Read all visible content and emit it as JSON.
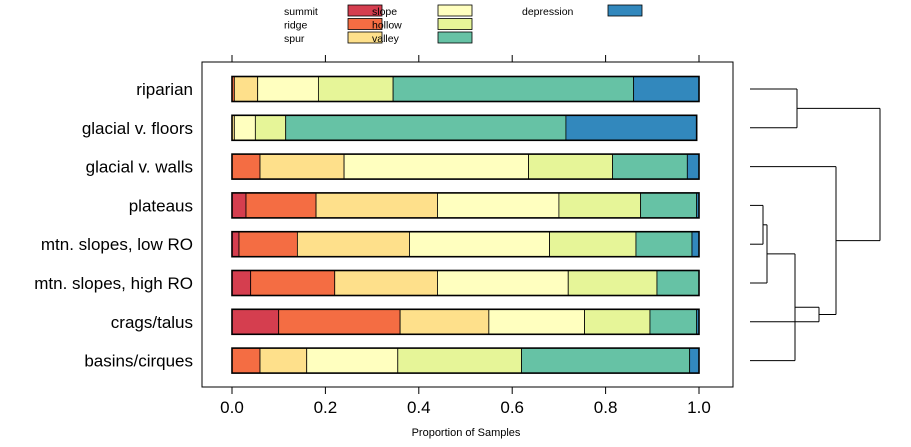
{
  "chart_data": {
    "type": "bar",
    "stacked": true,
    "orientation": "horizontal",
    "title": "",
    "xlabel": "Proportion of Samples",
    "ylabel": "",
    "xlim": [
      0,
      1
    ],
    "xticks": [
      "0.0",
      "0.2",
      "0.4",
      "0.6",
      "0.8",
      "1.0"
    ],
    "grid": false,
    "legend_position": "top",
    "categories": [
      "riparian",
      "glacial v. floors",
      "glacial v. walls",
      "plateaus",
      "mtn. slopes, low RO",
      "mtn. slopes, high RO",
      "crags/talus",
      "basins/cirques"
    ],
    "series": [
      {
        "name": "summit",
        "color": "#d53e4f",
        "values": [
          0.0,
          0.0,
          0.0,
          0.03,
          0.015,
          0.04,
          0.1,
          0.0
        ]
      },
      {
        "name": "ridge",
        "color": "#f46d43",
        "values": [
          0.005,
          0.0,
          0.06,
          0.15,
          0.125,
          0.18,
          0.26,
          0.06
        ]
      },
      {
        "name": "spur",
        "color": "#fee08b",
        "values": [
          0.05,
          0.005,
          0.18,
          0.26,
          0.24,
          0.22,
          0.19,
          0.1
        ]
      },
      {
        "name": "slope",
        "color": "#ffffbf",
        "values": [
          0.13,
          0.045,
          0.395,
          0.26,
          0.3,
          0.28,
          0.205,
          0.195
        ]
      },
      {
        "name": "hollow",
        "color": "#e6f598",
        "values": [
          0.16,
          0.065,
          0.18,
          0.175,
          0.185,
          0.19,
          0.14,
          0.265
        ]
      },
      {
        "name": "valley",
        "color": "#66c2a5",
        "values": [
          0.515,
          0.6,
          0.16,
          0.12,
          0.12,
          0.09,
          0.1,
          0.36
        ]
      },
      {
        "name": "depression",
        "color": "#3288bd",
        "values": [
          0.14,
          0.28,
          0.025,
          0.005,
          0.015,
          0.0,
          0.005,
          0.02
        ]
      }
    ],
    "legend_columns": [
      [
        "summit",
        "ridge",
        "spur"
      ],
      [
        "slope",
        "hollow",
        "valley"
      ],
      [
        "depression"
      ]
    ]
  }
}
